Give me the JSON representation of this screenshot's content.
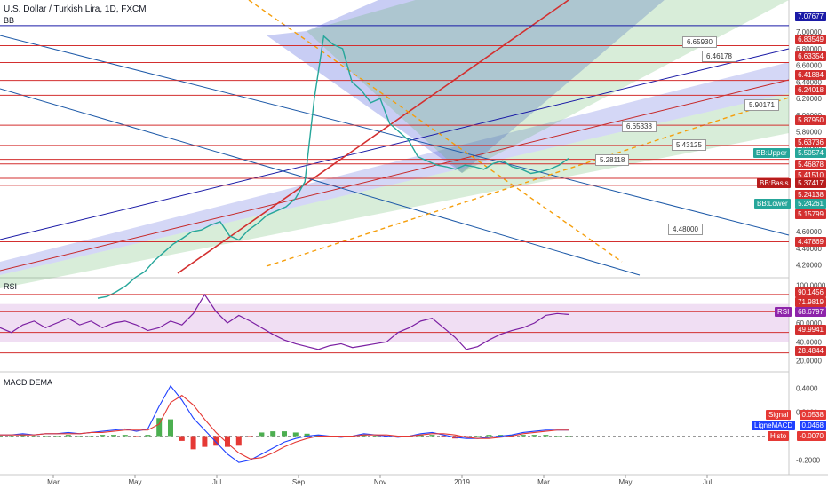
{
  "header": {
    "title": "U.S. Dollar / Turkish Lira, 1D, FXCM",
    "indicator_bb": "BB",
    "indicator_rsi": "RSI",
    "indicator_macd": "MACD DEMA"
  },
  "price_axis": {
    "ticks": [
      "7.20000",
      "7.00000",
      "6.80000",
      "6.60000",
      "6.40000",
      "6.20000",
      "6.00000",
      "5.80000",
      "5.60000",
      "5.40000",
      "5.20000",
      "4.80000",
      "4.60000",
      "4.40000",
      "4.20000"
    ],
    "tick_values": [
      7.2,
      7.0,
      6.8,
      6.6,
      6.4,
      6.2,
      6.0,
      5.8,
      5.6,
      5.4,
      5.2,
      4.8,
      4.6,
      4.4,
      4.2
    ],
    "levels": [
      {
        "value": "7.07677",
        "color": "#1a1aa6"
      },
      {
        "value": "6.83549",
        "color": "#d32f2f"
      },
      {
        "value": "6.63354",
        "color": "#d32f2f"
      },
      {
        "value": "6.41884",
        "color": "#d32f2f"
      },
      {
        "value": "6.24018",
        "color": "#d32f2f"
      },
      {
        "value": "5.87950",
        "color": "#d32f2f"
      },
      {
        "value": "5.63736",
        "color": "#d32f2f"
      },
      {
        "value": "5.46878",
        "color": "#d32f2f"
      },
      {
        "value": "5.41510",
        "color": "#d32f2f"
      },
      {
        "value": "5.24138",
        "color": "#d32f2f"
      },
      {
        "value": "5.15799",
        "color": "#d32f2f"
      },
      {
        "value": "4.47869",
        "color": "#d32f2f"
      }
    ],
    "bb_upper": {
      "name": "BB:Upper",
      "value": "5.50574",
      "color": "#26a69a"
    },
    "bb_basis": {
      "name": "BB:Basis",
      "value": "5.37417",
      "color": "#b71c1c"
    },
    "bb_lower": {
      "name": "BB:Lower",
      "value": "5.24261",
      "color": "#26a69a"
    }
  },
  "callouts": [
    "6.65930",
    "6.46178",
    "5.90171",
    "6.65338",
    "5.43125",
    "5.28118",
    "4.48000"
  ],
  "rsi_axis": {
    "ticks": [
      "100.0000",
      "80.0000",
      "60.0000",
      "40.0000",
      "20.0000"
    ],
    "tick_values": [
      100,
      80,
      60,
      40,
      20
    ],
    "levels": [
      "90.1456",
      "71.9819",
      "49.9941",
      "28.4844"
    ],
    "level_values": [
      90.1456,
      71.9819,
      49.9941,
      28.4844
    ],
    "current": {
      "name": "RSI",
      "value": "68.6797",
      "color": "#8e24aa"
    }
  },
  "macd_axis": {
    "ticks": [
      "0.4000",
      "0.2000",
      "-0.2000"
    ],
    "tick_values": [
      0.4,
      0.2,
      -0.2
    ],
    "signal": {
      "name": "Signal",
      "value": "0.0538",
      "color": "#e53935"
    },
    "ligne": {
      "name": "LigneMACD",
      "value": "0.0468",
      "color": "#1e40ff"
    },
    "histo": {
      "name": "Histo",
      "value": "-0.0070",
      "color": "#e53935"
    }
  },
  "time_axis": [
    "Mar",
    "May",
    "Jul",
    "Sep",
    "Nov",
    "2019",
    "Mar",
    "May",
    "Jul"
  ],
  "chart_data": {
    "type": "line",
    "title": "U.S. Dollar / Turkish Lira, 1D, FXCM",
    "x_labels": [
      "Mar",
      "May",
      "Jul",
      "Sep",
      "Nov",
      "2019",
      "Mar",
      "May",
      "Jul"
    ],
    "price_series": [
      3.8,
      3.82,
      3.88,
      3.95,
      4.05,
      4.12,
      4.25,
      4.35,
      4.45,
      4.52,
      4.6,
      4.62,
      4.68,
      4.72,
      4.55,
      4.5,
      4.62,
      4.7,
      4.8,
      4.85,
      4.9,
      5.0,
      5.2,
      6.2,
      6.95,
      6.85,
      6.8,
      6.4,
      6.3,
      6.15,
      6.2,
      5.9,
      5.8,
      5.7,
      5.5,
      5.45,
      5.4,
      5.38,
      5.35,
      5.4,
      5.38,
      5.35,
      5.42,
      5.45,
      5.38,
      5.35,
      5.3,
      5.32,
      5.35,
      5.4,
      5.48
    ],
    "rsi_series": [
      55,
      50,
      58,
      62,
      55,
      60,
      65,
      58,
      62,
      55,
      60,
      62,
      58,
      52,
      55,
      62,
      58,
      70,
      90,
      72,
      60,
      68,
      62,
      55,
      48,
      42,
      38,
      35,
      32,
      36,
      38,
      34,
      36,
      38,
      40,
      50,
      55,
      62,
      65,
      55,
      45,
      32,
      35,
      42,
      48,
      52,
      55,
      60,
      68,
      70,
      69
    ],
    "macd_series": [
      0.01,
      0.01,
      0.02,
      0.01,
      0.02,
      0.02,
      0.03,
      0.02,
      0.03,
      0.04,
      0.05,
      0.06,
      0.04,
      0.06,
      0.25,
      0.42,
      0.3,
      0.15,
      0.05,
      -0.05,
      -0.15,
      -0.22,
      -0.2,
      -0.15,
      -0.1,
      -0.05,
      -0.02,
      0.0,
      0.01,
      0.0,
      -0.01,
      0.0,
      0.02,
      0.01,
      0.0,
      -0.01,
      0.0,
      0.02,
      0.03,
      0.01,
      -0.01,
      -0.02,
      -0.02,
      -0.01,
      0.0,
      0.01,
      0.03,
      0.04,
      0.05,
      0.05,
      0.05
    ],
    "signal_series": [
      0.01,
      0.01,
      0.01,
      0.01,
      0.02,
      0.02,
      0.02,
      0.02,
      0.03,
      0.03,
      0.04,
      0.05,
      0.05,
      0.05,
      0.1,
      0.28,
      0.34,
      0.26,
      0.14,
      0.03,
      -0.06,
      -0.14,
      -0.19,
      -0.18,
      -0.14,
      -0.09,
      -0.05,
      -0.02,
      0.0,
      0.0,
      0.0,
      0.0,
      0.01,
      0.01,
      0.01,
      0.0,
      0.0,
      0.01,
      0.02,
      0.02,
      0.01,
      -0.01,
      -0.02,
      -0.02,
      -0.01,
      0.0,
      0.02,
      0.03,
      0.04,
      0.05,
      0.05
    ],
    "price_ylim": [
      4.1,
      7.3
    ],
    "rsi_ylim": [
      15,
      105
    ],
    "macd_ylim": [
      -0.3,
      0.5
    ]
  }
}
